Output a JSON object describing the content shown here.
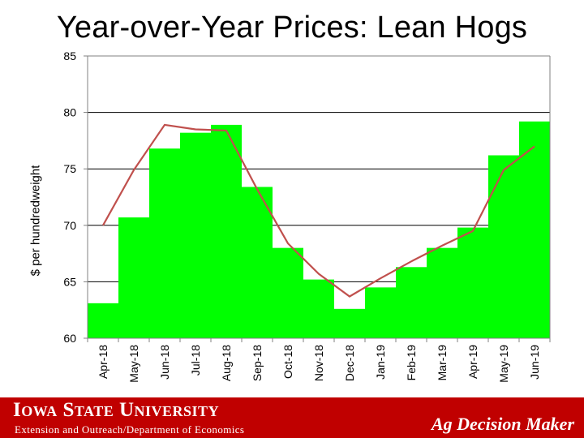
{
  "slide": {
    "title": "Year-over-Year Prices: Lean Hogs"
  },
  "footer": {
    "university": "Iowa State University",
    "department": "Extension and Outreach/Department of Economics",
    "brand": "Ag Decision Maker",
    "background_color": "#c00000"
  },
  "chart_data": {
    "type": "bar",
    "categories": [
      "Apr-18",
      "May-18",
      "Jun-18",
      "Jul-18",
      "Aug-18",
      "Sep-18",
      "Oct-18",
      "Nov-18",
      "Dec-18",
      "Jan-19",
      "Feb-19",
      "Mar-19",
      "Apr-19",
      "May-19",
      "Jun-19"
    ],
    "series": [
      {
        "kind": "bar",
        "color": "#00ff00",
        "values": [
          63.1,
          70.7,
          76.8,
          78.2,
          78.9,
          73.4,
          68.0,
          65.2,
          62.6,
          64.5,
          66.3,
          68.0,
          69.8,
          76.2,
          79.2
        ]
      },
      {
        "kind": "line",
        "color": "#c0504d",
        "values": [
          70.0,
          74.9,
          78.9,
          78.5,
          78.4,
          73.2,
          68.4,
          65.7,
          63.7,
          65.3,
          66.8,
          68.2,
          69.5,
          74.9,
          77.0
        ]
      }
    ],
    "title": "",
    "xlabel": "",
    "ylabel": "$ per hundredweight",
    "ylim": [
      60,
      85
    ],
    "yticks": [
      60,
      65,
      70,
      75,
      80,
      85
    ],
    "grid": true
  }
}
